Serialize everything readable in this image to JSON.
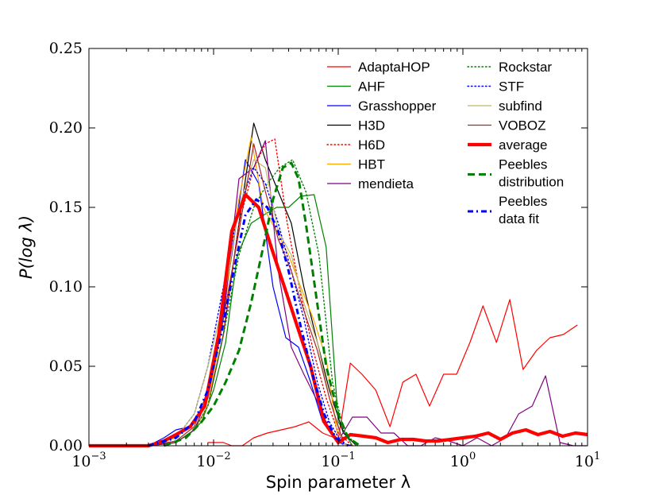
{
  "chart_data": {
    "type": "line",
    "title": "",
    "xlabel": "Spin parameter λ",
    "ylabel": "P(log λ)",
    "xscale": "log",
    "xlim": [
      0.001,
      10
    ],
    "ylim": [
      0.0,
      0.25
    ],
    "grid": false,
    "legend_position": "top-right",
    "x_tick_labels": [
      {
        "value": 0.001,
        "base": "10",
        "exp": "−3"
      },
      {
        "value": 0.01,
        "base": "10",
        "exp": "−2"
      },
      {
        "value": 0.1,
        "base": "10",
        "exp": "−1"
      },
      {
        "value": 1,
        "base": "10",
        "exp": "0"
      },
      {
        "value": 10,
        "base": "10",
        "exp": "1"
      }
    ],
    "y_tick_labels": [
      {
        "value": 0.0,
        "label": "0.00"
      },
      {
        "value": 0.05,
        "label": "0.05"
      },
      {
        "value": 0.1,
        "label": "0.10"
      },
      {
        "value": 0.15,
        "label": "0.15"
      },
      {
        "value": 0.2,
        "label": "0.20"
      },
      {
        "value": 0.25,
        "label": "0.25"
      }
    ],
    "series": [
      {
        "name": "AdaptaHOP",
        "color": "#ff0000",
        "style": "solid",
        "width": 1.2,
        "x": [
          0.009,
          0.012,
          0.014,
          0.017,
          0.021,
          0.027,
          0.035,
          0.045,
          0.058,
          0.075,
          0.1,
          0.125,
          0.155,
          0.2,
          0.26,
          0.33,
          0.42,
          0.54,
          0.7,
          0.89,
          1.14,
          1.45,
          1.86,
          2.38,
          3.04,
          3.9,
          5.0,
          6.4,
          8.3
        ],
        "y": [
          0.002,
          0.002,
          0.0,
          0.0,
          0.005,
          0.008,
          0.01,
          0.012,
          0.015,
          0.008,
          0.004,
          0.052,
          0.045,
          0.035,
          0.012,
          0.04,
          0.045,
          0.025,
          0.045,
          0.045,
          0.065,
          0.088,
          0.065,
          0.092,
          0.048,
          0.06,
          0.068,
          0.07,
          0.076
        ]
      },
      {
        "name": "AHF",
        "color": "#008000",
        "style": "solid",
        "width": 1.2,
        "x": [
          0.006,
          0.008,
          0.01,
          0.0125,
          0.0155,
          0.02,
          0.025,
          0.032,
          0.04,
          0.05,
          0.064,
          0.08,
          0.1,
          0.13
        ],
        "y": [
          0.005,
          0.015,
          0.035,
          0.065,
          0.12,
          0.14,
          0.145,
          0.15,
          0.15,
          0.157,
          0.158,
          0.125,
          0.015,
          0.0
        ]
      },
      {
        "name": "Grasshopper",
        "color": "#0000ff",
        "style": "solid",
        "width": 1.2,
        "x": [
          0.001,
          0.002,
          0.003,
          0.004,
          0.005,
          0.0065,
          0.0085,
          0.011,
          0.014,
          0.018,
          0.023,
          0.03,
          0.038,
          0.048,
          0.06,
          0.075,
          0.1,
          0.13
        ],
        "y": [
          0.0,
          0.0,
          0.0,
          0.005,
          0.01,
          0.012,
          0.025,
          0.065,
          0.12,
          0.18,
          0.165,
          0.1,
          0.068,
          0.062,
          0.04,
          0.015,
          0.002,
          0.0
        ]
      },
      {
        "name": "H3D",
        "color": "#000000",
        "style": "solid",
        "width": 1.2,
        "x": [
          0.003,
          0.005,
          0.007,
          0.009,
          0.012,
          0.016,
          0.021,
          0.026,
          0.033,
          0.042,
          0.053,
          0.068,
          0.085,
          0.11,
          0.14
        ],
        "y": [
          0.0,
          0.002,
          0.01,
          0.025,
          0.07,
          0.14,
          0.203,
          0.18,
          0.16,
          0.14,
          0.1,
          0.065,
          0.035,
          0.008,
          0.0
        ]
      },
      {
        "name": "H6D",
        "color": "#ff0000",
        "style": "dotted",
        "width": 1.4,
        "x": [
          0.003,
          0.005,
          0.007,
          0.009,
          0.012,
          0.016,
          0.021,
          0.026,
          0.031,
          0.039,
          0.05,
          0.063,
          0.08,
          0.1,
          0.13
        ],
        "y": [
          0.0,
          0.002,
          0.01,
          0.025,
          0.07,
          0.14,
          0.175,
          0.19,
          0.193,
          0.14,
          0.095,
          0.06,
          0.03,
          0.008,
          0.0
        ]
      },
      {
        "name": "HBT",
        "color": "#ffa500",
        "style": "solid",
        "width": 1.2,
        "x": [
          0.003,
          0.005,
          0.007,
          0.009,
          0.012,
          0.0155,
          0.02,
          0.025,
          0.032,
          0.04,
          0.05,
          0.063,
          0.08,
          0.1,
          0.12
        ],
        "y": [
          0.0,
          0.002,
          0.01,
          0.025,
          0.08,
          0.15,
          0.194,
          0.15,
          0.135,
          0.12,
          0.1,
          0.08,
          0.055,
          0.003,
          0.0
        ]
      },
      {
        "name": "mendieta",
        "color": "#800080",
        "style": "solid",
        "width": 1.2,
        "x": [
          0.003,
          0.005,
          0.007,
          0.009,
          0.012,
          0.016,
          0.021,
          0.026,
          0.033,
          0.042,
          0.053,
          0.068,
          0.085,
          0.1,
          0.13,
          0.17,
          0.22,
          0.28,
          0.36,
          0.46,
          0.6,
          0.77,
          1.0,
          1.3,
          1.7,
          2.2,
          2.8,
          3.6,
          4.6,
          6.0,
          7.7,
          9.9
        ],
        "y": [
          0.0,
          0.002,
          0.01,
          0.03,
          0.08,
          0.168,
          0.175,
          0.192,
          0.11,
          0.062,
          0.045,
          0.028,
          0.01,
          0.003,
          0.018,
          0.018,
          0.008,
          0.008,
          0.0,
          0.0,
          0.005,
          0.003,
          0.0,
          0.005,
          0.0,
          0.005,
          0.02,
          0.025,
          0.044,
          0.002,
          0.0,
          0.0
        ]
      },
      {
        "name": "Rockstar",
        "color": "#008000",
        "style": "dotted",
        "width": 1.4,
        "x": [
          0.005,
          0.007,
          0.009,
          0.012,
          0.016,
          0.021,
          0.027,
          0.034,
          0.043,
          0.055,
          0.07,
          0.09,
          0.11,
          0.14
        ],
        "y": [
          0.002,
          0.01,
          0.025,
          0.07,
          0.12,
          0.15,
          0.165,
          0.175,
          0.18,
          0.16,
          0.12,
          0.04,
          0.01,
          0.0
        ]
      },
      {
        "name": "STF",
        "color": "#0000ff",
        "style": "dotted",
        "width": 1.4,
        "x": [
          0.003,
          0.005,
          0.007,
          0.009,
          0.012,
          0.016,
          0.021,
          0.026,
          0.033,
          0.042,
          0.053,
          0.068,
          0.085,
          0.11
        ],
        "y": [
          0.0,
          0.005,
          0.02,
          0.05,
          0.1,
          0.15,
          0.175,
          0.165,
          0.14,
          0.11,
          0.08,
          0.04,
          0.015,
          0.0
        ]
      },
      {
        "name": "subfind",
        "color": "#bdb76b",
        "style": "solid",
        "width": 1.2,
        "x": [
          0.003,
          0.005,
          0.007,
          0.009,
          0.012,
          0.016,
          0.021,
          0.026,
          0.033,
          0.042,
          0.053,
          0.068,
          0.085,
          0.11
        ],
        "y": [
          0.0,
          0.005,
          0.02,
          0.05,
          0.09,
          0.15,
          0.18,
          0.175,
          0.135,
          0.12,
          0.09,
          0.065,
          0.03,
          0.0
        ]
      },
      {
        "name": "VOBOZ",
        "color": "#a52a2a",
        "style": "solid",
        "width": 1.2,
        "x": [
          0.003,
          0.005,
          0.007,
          0.009,
          0.012,
          0.016,
          0.021,
          0.026,
          0.033,
          0.042,
          0.053,
          0.068,
          0.085,
          0.11
        ],
        "y": [
          0.0,
          0.003,
          0.012,
          0.035,
          0.08,
          0.135,
          0.19,
          0.16,
          0.13,
          0.11,
          0.085,
          0.06,
          0.03,
          0.002
        ]
      },
      {
        "name": "average",
        "color": "#ff0000",
        "style": "solid",
        "width": 4.2,
        "x": [
          0.001,
          0.002,
          0.003,
          0.004,
          0.005,
          0.0065,
          0.0085,
          0.011,
          0.014,
          0.018,
          0.023,
          0.029,
          0.037,
          0.047,
          0.06,
          0.077,
          0.1,
          0.125,
          0.16,
          0.2,
          0.25,
          0.32,
          0.4,
          0.5,
          0.63,
          0.8,
          1.0,
          1.26,
          1.6,
          2.0,
          2.5,
          3.2,
          4.0,
          5.0,
          6.3,
          8.0,
          10.0
        ],
        "y": [
          0.0,
          0.0,
          0.0,
          0.003,
          0.007,
          0.012,
          0.025,
          0.07,
          0.135,
          0.158,
          0.15,
          0.125,
          0.1,
          0.075,
          0.05,
          0.015,
          0.002,
          0.007,
          0.006,
          0.005,
          0.002,
          0.004,
          0.004,
          0.003,
          0.003,
          0.004,
          0.005,
          0.006,
          0.008,
          0.004,
          0.008,
          0.01,
          0.007,
          0.009,
          0.006,
          0.008,
          0.007
        ]
      },
      {
        "name": "Peebles distribution",
        "color": "#008000",
        "style": "dashed",
        "width": 3.0,
        "x": [
          0.004,
          0.006,
          0.008,
          0.01,
          0.0125,
          0.016,
          0.02,
          0.025,
          0.03,
          0.036,
          0.042,
          0.048,
          0.055,
          0.065,
          0.08,
          0.1,
          0.12,
          0.15
        ],
        "y": [
          0.0,
          0.005,
          0.015,
          0.025,
          0.04,
          0.06,
          0.09,
          0.125,
          0.155,
          0.175,
          0.178,
          0.168,
          0.14,
          0.1,
          0.05,
          0.02,
          0.005,
          0.0
        ]
      },
      {
        "name": "Peebles data fit",
        "color": "#0000ff",
        "style": "dashdot",
        "width": 3.0,
        "x": [
          0.003,
          0.005,
          0.007,
          0.009,
          0.0115,
          0.0145,
          0.018,
          0.022,
          0.027,
          0.033,
          0.04,
          0.05,
          0.062,
          0.077,
          0.095,
          0.12
        ],
        "y": [
          0.0,
          0.005,
          0.015,
          0.035,
          0.07,
          0.11,
          0.145,
          0.155,
          0.15,
          0.135,
          0.11,
          0.075,
          0.045,
          0.02,
          0.005,
          0.0
        ]
      }
    ],
    "legend": [
      {
        "label": "AdaptaHOP",
        "color": "#ff0000",
        "style": "solid",
        "width": 1.2
      },
      {
        "label": "AHF",
        "color": "#008000",
        "style": "solid",
        "width": 1.2
      },
      {
        "label": "Grasshopper",
        "color": "#0000ff",
        "style": "solid",
        "width": 1.2
      },
      {
        "label": "H3D",
        "color": "#000000",
        "style": "solid",
        "width": 1.2
      },
      {
        "label": "H6D",
        "color": "#ff0000",
        "style": "dotted",
        "width": 1.4
      },
      {
        "label": "HBT",
        "color": "#ffa500",
        "style": "solid",
        "width": 1.2
      },
      {
        "label": "mendieta",
        "color": "#800080",
        "style": "solid",
        "width": 1.2
      },
      {
        "label": "Rockstar",
        "color": "#008000",
        "style": "dotted",
        "width": 1.4
      },
      {
        "label": "STF",
        "color": "#0000ff",
        "style": "dotted",
        "width": 1.4
      },
      {
        "label": "subfind",
        "color": "#bdb76b",
        "style": "solid",
        "width": 1.2
      },
      {
        "label": "VOBOZ",
        "color": "#a52a2a",
        "style": "solid",
        "width": 1.2
      },
      {
        "label": "average",
        "color": "#ff0000",
        "style": "solid",
        "width": 4.2
      },
      {
        "label": [
          "Peebles",
          "distribution"
        ],
        "color": "#008000",
        "style": "dashed",
        "width": 3.0
      },
      {
        "label": [
          "Peebles",
          "data fit"
        ],
        "color": "#0000ff",
        "style": "dashdot",
        "width": 3.0
      }
    ]
  }
}
